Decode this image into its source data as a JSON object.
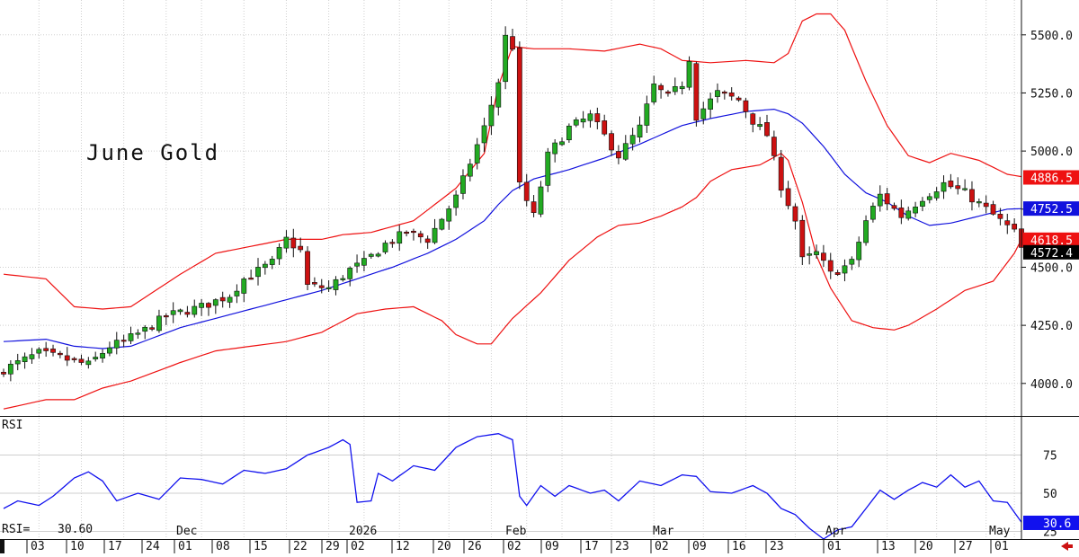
{
  "title": "June Gold",
  "colors": {
    "up": "#22aa22",
    "down": "#cc1111",
    "bollinger_outer": "#ee1111",
    "bollinger_middle": "#1111dd",
    "rsi_line": "#1111ee",
    "grid": "#cfcfcf",
    "background": "#ffffff"
  },
  "chart_data": [
    {
      "type": "candlestick",
      "title": "June Gold",
      "ylim": [
        3860,
        5650
      ],
      "grid": true,
      "y_ticks": [
        "5500.0",
        "5250.0",
        "5000.0",
        "4750.0",
        "4500.0",
        "4250.0",
        "4000.0"
      ],
      "x_labels": [
        "03",
        "10",
        "17",
        "24",
        "01",
        "08",
        "15",
        "22",
        "29",
        "02",
        "12",
        "20",
        "26",
        "02",
        "09",
        "17",
        "23",
        "02",
        "09",
        "16",
        "23",
        "01",
        "13",
        "20",
        "27",
        "01"
      ],
      "month_labels": [
        "Dec",
        "2026",
        "Feb",
        "Mar",
        "Apr",
        "May"
      ],
      "price_badges": [
        {
          "label": "4886.5",
          "color": "#ee1111"
        },
        {
          "label": "4752.5",
          "color": "#1111dd"
        },
        {
          "label": "4618.5",
          "color": "#ee1111"
        },
        {
          "label": "4572.4",
          "color": "#000000"
        }
      ],
      "ohlc_anchors": [
        [
          0,
          4060
        ],
        [
          5,
          4130
        ],
        [
          8,
          4110
        ],
        [
          12,
          4080
        ],
        [
          15,
          4160
        ],
        [
          17,
          4180
        ],
        [
          20,
          4230
        ],
        [
          23,
          4290
        ],
        [
          28,
          4330
        ],
        [
          32,
          4380
        ],
        [
          34,
          4450
        ],
        [
          38,
          4520
        ],
        [
          40,
          4620
        ],
        [
          42,
          4570
        ],
        [
          43,
          4420
        ],
        [
          46,
          4410
        ],
        [
          49,
          4490
        ],
        [
          51,
          4520
        ],
        [
          54,
          4600
        ],
        [
          57,
          4650
        ],
        [
          60,
          4620
        ],
        [
          64,
          4800
        ],
        [
          66,
          4950
        ],
        [
          68,
          5100
        ],
        [
          70,
          5300
        ],
        [
          71,
          5490
        ],
        [
          72,
          5450
        ],
        [
          73,
          4850
        ],
        [
          75,
          4720
        ],
        [
          77,
          4980
        ],
        [
          80,
          5100
        ],
        [
          83,
          5150
        ],
        [
          87,
          4980
        ],
        [
          90,
          5100
        ],
        [
          92,
          5280
        ],
        [
          94,
          5230
        ],
        [
          96,
          5290
        ],
        [
          97,
          5400
        ],
        [
          98,
          5150
        ],
        [
          101,
          5250
        ],
        [
          104,
          5220
        ],
        [
          106,
          5130
        ],
        [
          108,
          5070
        ],
        [
          110,
          4850
        ],
        [
          112,
          4700
        ],
        [
          113,
          4530
        ],
        [
          115,
          4560
        ],
        [
          117,
          4470
        ],
        [
          120,
          4520
        ],
        [
          122,
          4700
        ],
        [
          124,
          4810
        ],
        [
          127,
          4720
        ],
        [
          130,
          4800
        ],
        [
          133,
          4860
        ],
        [
          136,
          4820
        ],
        [
          139,
          4750
        ],
        [
          141,
          4700
        ],
        [
          143,
          4650
        ],
        [
          144,
          4580
        ]
      ],
      "bollinger_upper": [
        [
          0,
          4470
        ],
        [
          6,
          4450
        ],
        [
          10,
          4330
        ],
        [
          14,
          4320
        ],
        [
          18,
          4330
        ],
        [
          25,
          4470
        ],
        [
          30,
          4560
        ],
        [
          40,
          4620
        ],
        [
          45,
          4620
        ],
        [
          48,
          4640
        ],
        [
          52,
          4650
        ],
        [
          58,
          4700
        ],
        [
          64,
          4840
        ],
        [
          68,
          4990
        ],
        [
          70,
          5280
        ],
        [
          72,
          5450
        ],
        [
          75,
          5440
        ],
        [
          80,
          5440
        ],
        [
          85,
          5430
        ],
        [
          90,
          5460
        ],
        [
          93,
          5440
        ],
        [
          96,
          5390
        ],
        [
          100,
          5380
        ],
        [
          105,
          5390
        ],
        [
          109,
          5380
        ],
        [
          111,
          5420
        ],
        [
          113,
          5560
        ],
        [
          115,
          5590
        ],
        [
          117,
          5590
        ],
        [
          119,
          5520
        ],
        [
          122,
          5300
        ],
        [
          125,
          5110
        ],
        [
          128,
          4980
        ],
        [
          131,
          4950
        ],
        [
          134,
          4990
        ],
        [
          138,
          4960
        ],
        [
          142,
          4900
        ],
        [
          144,
          4890
        ]
      ],
      "bollinger_middle": [
        [
          0,
          4180
        ],
        [
          6,
          4190
        ],
        [
          10,
          4160
        ],
        [
          14,
          4150
        ],
        [
          18,
          4160
        ],
        [
          25,
          4240
        ],
        [
          30,
          4280
        ],
        [
          40,
          4360
        ],
        [
          45,
          4400
        ],
        [
          50,
          4450
        ],
        [
          55,
          4500
        ],
        [
          60,
          4560
        ],
        [
          64,
          4620
        ],
        [
          68,
          4700
        ],
        [
          70,
          4770
        ],
        [
          72,
          4830
        ],
        [
          75,
          4880
        ],
        [
          80,
          4920
        ],
        [
          85,
          4970
        ],
        [
          90,
          5030
        ],
        [
          93,
          5070
        ],
        [
          96,
          5110
        ],
        [
          100,
          5140
        ],
        [
          105,
          5170
        ],
        [
          109,
          5180
        ],
        [
          111,
          5160
        ],
        [
          113,
          5120
        ],
        [
          116,
          5020
        ],
        [
          119,
          4900
        ],
        [
          122,
          4820
        ],
        [
          125,
          4780
        ],
        [
          128,
          4720
        ],
        [
          131,
          4680
        ],
        [
          134,
          4690
        ],
        [
          138,
          4720
        ],
        [
          142,
          4750
        ],
        [
          144,
          4752
        ]
      ],
      "bollinger_lower": [
        [
          0,
          3890
        ],
        [
          6,
          3930
        ],
        [
          10,
          3930
        ],
        [
          14,
          3980
        ],
        [
          18,
          4010
        ],
        [
          25,
          4090
        ],
        [
          30,
          4140
        ],
        [
          40,
          4180
        ],
        [
          45,
          4220
        ],
        [
          50,
          4300
        ],
        [
          54,
          4320
        ],
        [
          58,
          4330
        ],
        [
          62,
          4270
        ],
        [
          64,
          4210
        ],
        [
          67,
          4170
        ],
        [
          69,
          4170
        ],
        [
          72,
          4280
        ],
        [
          76,
          4390
        ],
        [
          80,
          4530
        ],
        [
          84,
          4630
        ],
        [
          87,
          4680
        ],
        [
          90,
          4690
        ],
        [
          93,
          4720
        ],
        [
          96,
          4760
        ],
        [
          98,
          4800
        ],
        [
          100,
          4870
        ],
        [
          103,
          4920
        ],
        [
          107,
          4940
        ],
        [
          110,
          4990
        ],
        [
          111,
          4960
        ],
        [
          113,
          4780
        ],
        [
          115,
          4550
        ],
        [
          117,
          4410
        ],
        [
          120,
          4270
        ],
        [
          123,
          4240
        ],
        [
          126,
          4230
        ],
        [
          128,
          4250
        ],
        [
          132,
          4320
        ],
        [
          136,
          4400
        ],
        [
          140,
          4440
        ],
        [
          143,
          4560
        ],
        [
          144,
          4620
        ]
      ]
    },
    {
      "type": "line",
      "title": "RSI",
      "ylim": [
        20,
        100
      ],
      "y_ticks": [
        "75",
        "50",
        "25"
      ],
      "current_label": "RSI=",
      "current_value": "30.60",
      "badge": "30.6",
      "series": [
        {
          "values": [
            [
              0,
              40
            ],
            [
              2,
              45
            ],
            [
              5,
              42
            ],
            [
              7,
              48
            ],
            [
              10,
              60
            ],
            [
              12,
              64
            ],
            [
              14,
              58
            ],
            [
              16,
              45
            ],
            [
              19,
              50
            ],
            [
              22,
              46
            ],
            [
              25,
              60
            ],
            [
              28,
              59
            ],
            [
              31,
              56
            ],
            [
              34,
              65
            ],
            [
              37,
              63
            ],
            [
              40,
              66
            ],
            [
              43,
              75
            ],
            [
              46,
              80
            ],
            [
              48,
              85
            ],
            [
              49,
              82
            ],
            [
              50,
              44
            ],
            [
              52,
              45
            ],
            [
              53,
              63
            ],
            [
              55,
              58
            ],
            [
              58,
              68
            ],
            [
              61,
              65
            ],
            [
              64,
              80
            ],
            [
              67,
              87
            ],
            [
              70,
              89
            ],
            [
              72,
              85
            ],
            [
              73,
              48
            ],
            [
              74,
              42
            ],
            [
              76,
              55
            ],
            [
              78,
              48
            ],
            [
              80,
              55
            ],
            [
              83,
              50
            ],
            [
              85,
              52
            ],
            [
              87,
              45
            ],
            [
              90,
              58
            ],
            [
              93,
              55
            ],
            [
              96,
              62
            ],
            [
              98,
              61
            ],
            [
              100,
              51
            ],
            [
              103,
              50
            ],
            [
              106,
              55
            ],
            [
              108,
              50
            ],
            [
              110,
              40
            ],
            [
              112,
              36
            ],
            [
              114,
              27
            ],
            [
              116,
              20
            ],
            [
              118,
              26
            ],
            [
              120,
              28
            ],
            [
              122,
              40
            ],
            [
              124,
              52
            ],
            [
              126,
              46
            ],
            [
              128,
              52
            ],
            [
              130,
              57
            ],
            [
              132,
              54
            ],
            [
              134,
              62
            ],
            [
              136,
              54
            ],
            [
              138,
              58
            ],
            [
              140,
              45
            ],
            [
              142,
              44
            ],
            [
              144,
              31
            ]
          ]
        }
      ]
    }
  ]
}
